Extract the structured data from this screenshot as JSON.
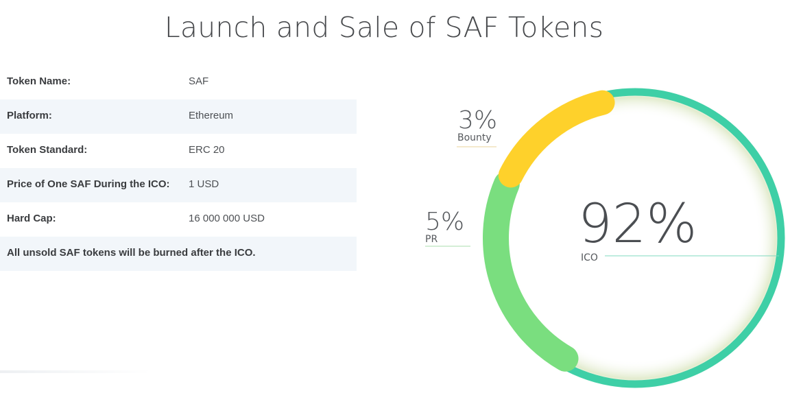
{
  "page": {
    "title": "Launch and Sale of SAF Tokens"
  },
  "table": {
    "rows": [
      {
        "label": "Token Name:",
        "value": "SAF"
      },
      {
        "label": "Platform:",
        "value": "Ethereum"
      },
      {
        "label": "Token Standard:",
        "value": "ERC 20"
      },
      {
        "label": "Price of One SAF During the ICO:",
        "value": "1 USD"
      },
      {
        "label": "Hard Cap:",
        "value": "16 000 000 USD"
      }
    ],
    "footnote": "All unsold SAF tokens will be burned after the ICO."
  },
  "chart_data": {
    "type": "pie",
    "variant": "donut",
    "slices": [
      {
        "label": "ICO",
        "value": 92,
        "display": "92%",
        "color": "#3ecfa6"
      },
      {
        "label": "PR",
        "value": 5,
        "display": "5%",
        "color": "#7ade7f"
      },
      {
        "label": "Bounty",
        "value": 3,
        "display": "3%",
        "color": "#fed12b"
      }
    ],
    "legend": "inline-labels"
  }
}
